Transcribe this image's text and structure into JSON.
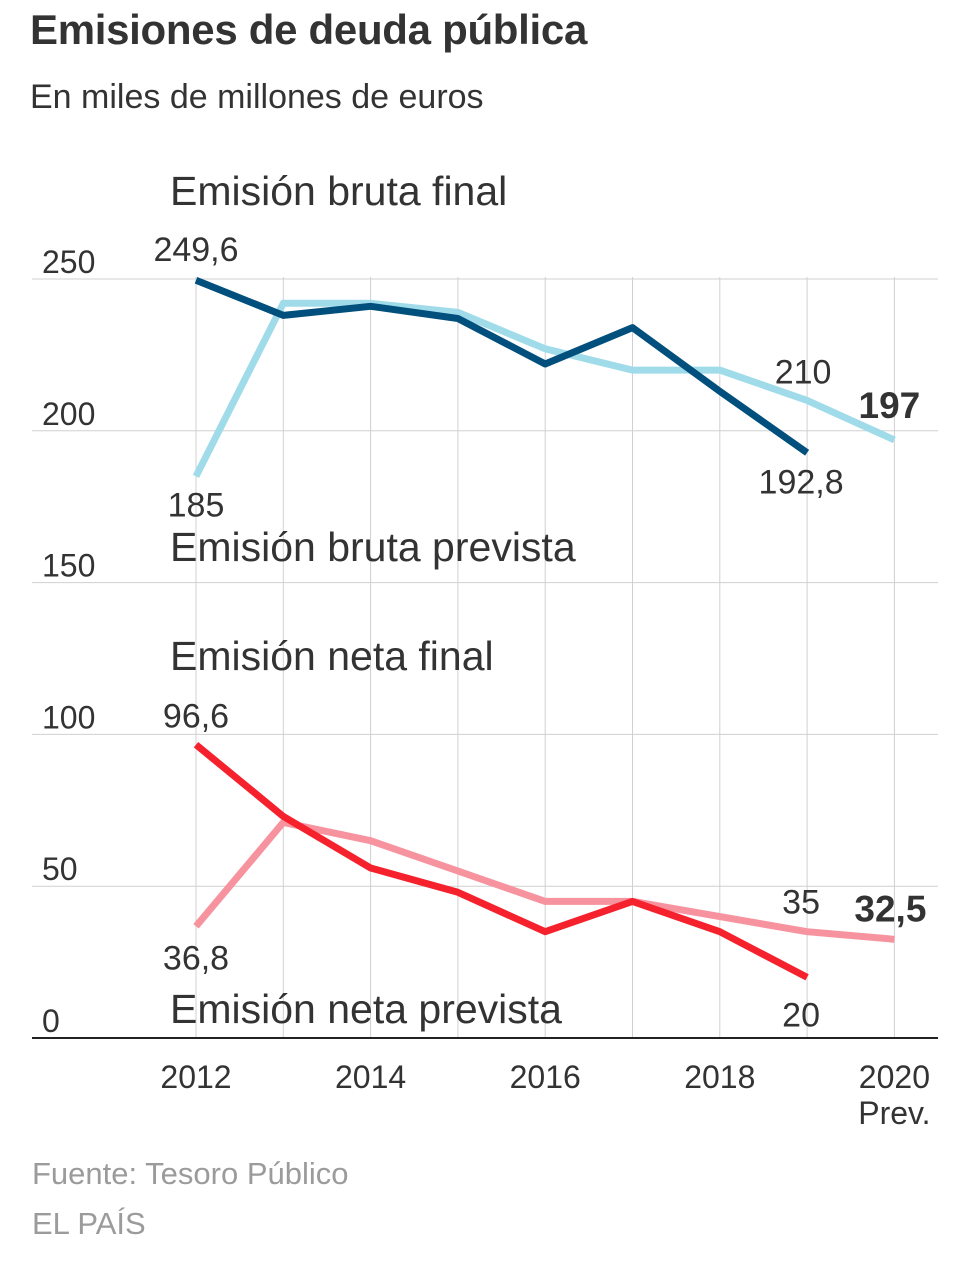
{
  "header": {
    "title": "Emisiones de deuda pública",
    "subtitle": "En miles de millones de euros"
  },
  "footer": {
    "source": "Fuente: Tesoro Público",
    "brand": "EL PAÍS"
  },
  "colors": {
    "bruta_final": "#004f7c",
    "bruta_prevista": "#a0dbea",
    "neta_final": "#f5222d",
    "neta_prevista": "#f7939e",
    "grid": "#d0d0d0",
    "axis": "#222222",
    "text": "#333333"
  },
  "chart_data": {
    "type": "line",
    "title": "Emisiones de deuda pública",
    "subtitle": "En miles de millones de euros",
    "x": [
      2012,
      2013,
      2014,
      2015,
      2016,
      2017,
      2018,
      2019,
      2020
    ],
    "x_tick_labels": [
      {
        "x": 2012,
        "label": "2012"
      },
      {
        "x": 2014,
        "label": "2014"
      },
      {
        "x": 2016,
        "label": "2016"
      },
      {
        "x": 2018,
        "label": "2018"
      },
      {
        "x": 2020,
        "label": "2020",
        "sublabel": "Prev."
      }
    ],
    "ylim": [
      0,
      250
    ],
    "y_ticks": [
      0,
      50,
      100,
      150,
      200,
      250
    ],
    "grid": true,
    "series": [
      {
        "key": "bruta_prevista",
        "name": "Emisión bruta prevista",
        "x": [
          2012,
          2013,
          2014,
          2015,
          2016,
          2017,
          2018,
          2019,
          2020
        ],
        "values": [
          185,
          242,
          242,
          239,
          227,
          220,
          220,
          210,
          197
        ]
      },
      {
        "key": "bruta_final",
        "name": "Emisión bruta final",
        "x": [
          2012,
          2013,
          2014,
          2015,
          2016,
          2017,
          2018,
          2019
        ],
        "values": [
          249.6,
          238,
          241,
          237,
          222,
          234,
          213,
          192.8
        ]
      },
      {
        "key": "neta_prevista",
        "name": "Emisión neta prevista",
        "x": [
          2012,
          2013,
          2014,
          2015,
          2016,
          2017,
          2018,
          2019,
          2020
        ],
        "values": [
          36.8,
          71,
          65,
          55,
          45,
          45,
          40,
          35,
          32.5
        ]
      },
      {
        "key": "neta_final",
        "name": "Emisión neta final",
        "x": [
          2012,
          2013,
          2014,
          2015,
          2016,
          2017,
          2018,
          2019
        ],
        "values": [
          96.6,
          73,
          56,
          48,
          35,
          45,
          35,
          20
        ]
      }
    ],
    "series_labels": [
      {
        "text": "Emisión bruta final",
        "series": "bruta_final"
      },
      {
        "text": "Emisión bruta prevista",
        "series": "bruta_prevista"
      },
      {
        "text": "Emisión neta final",
        "series": "neta_final"
      },
      {
        "text": "Emisión neta prevista",
        "series": "neta_prevista"
      }
    ],
    "annotations": [
      {
        "text": "249,6",
        "x": 2012,
        "y": 249.6,
        "bold": false
      },
      {
        "text": "185",
        "x": 2012,
        "y": 185,
        "bold": false
      },
      {
        "text": "210",
        "x": 2019,
        "y": 210,
        "bold": false
      },
      {
        "text": "192,8",
        "x": 2019,
        "y": 192.8,
        "bold": false
      },
      {
        "text": "197",
        "x": 2020,
        "y": 197,
        "bold": true
      },
      {
        "text": "96,6",
        "x": 2012,
        "y": 96.6,
        "bold": false
      },
      {
        "text": "36,8",
        "x": 2012,
        "y": 36.8,
        "bold": false
      },
      {
        "text": "35",
        "x": 2019,
        "y": 35,
        "bold": false
      },
      {
        "text": "20",
        "x": 2019,
        "y": 20,
        "bold": false
      },
      {
        "text": "32,5",
        "x": 2020,
        "y": 32.5,
        "bold": true
      }
    ]
  }
}
